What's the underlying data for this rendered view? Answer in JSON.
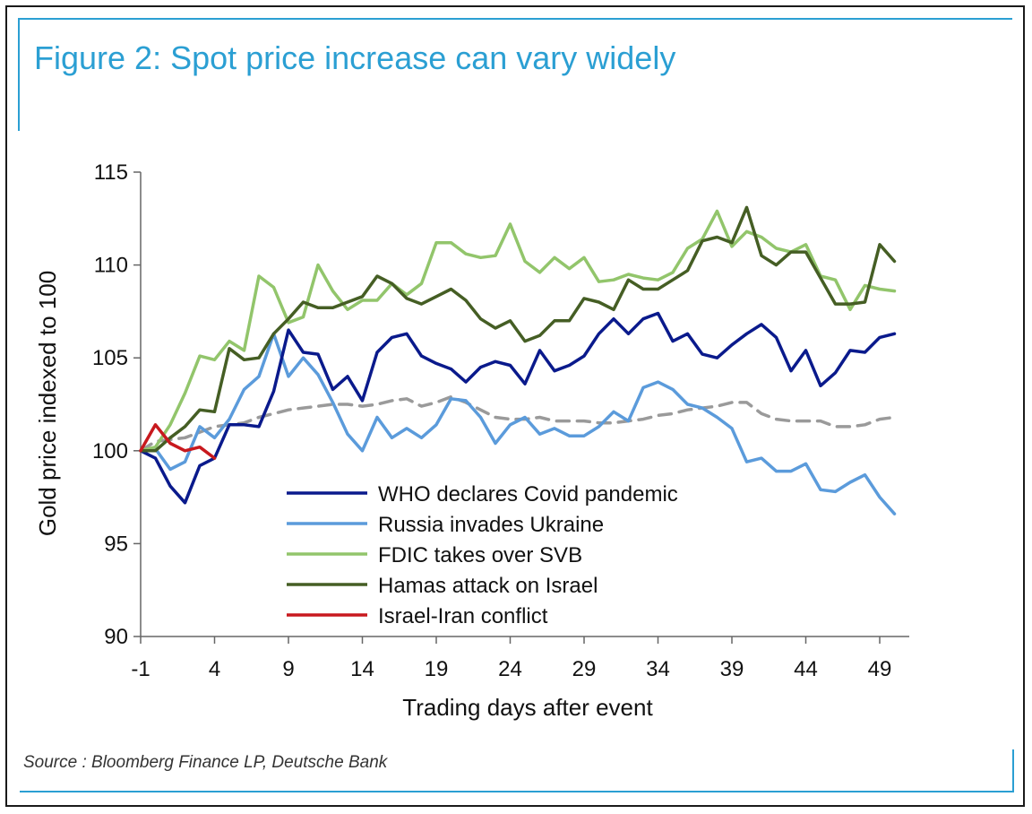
{
  "figure": {
    "title": "Figure 2: Spot price increase can vary widely",
    "source": "Source : Bloomberg Finance LP, Deutsche Bank"
  },
  "chart_data": {
    "type": "line",
    "xlabel": "Trading days after event",
    "ylabel": "Gold price indexed to 100",
    "xlim": [
      -1,
      51
    ],
    "ylim": [
      90,
      115
    ],
    "xticks": [
      -1,
      4,
      9,
      14,
      19,
      24,
      29,
      34,
      39,
      44,
      49
    ],
    "yticks": [
      90,
      95,
      100,
      105,
      110,
      115
    ],
    "legend_position": "inside-lower-middle",
    "grid": false,
    "series": [
      {
        "name": "WHO declares Covid pandemic",
        "color": "#0a1a8c",
        "dashed": false,
        "x0": -1,
        "values": [
          100,
          99.6,
          98.1,
          97.2,
          99.2,
          99.6,
          101.4,
          101.4,
          101.3,
          103.2,
          106.5,
          105.3,
          105.2,
          103.3,
          104.0,
          102.7,
          105.3,
          106.1,
          106.3,
          105.1,
          104.7,
          104.4,
          103.7,
          104.5,
          104.8,
          104.6,
          103.6,
          105.4,
          104.3,
          104.6,
          105.1,
          106.3,
          107.1,
          106.3,
          107.1,
          107.4,
          105.9,
          106.3,
          105.2,
          105.0,
          105.7,
          106.3,
          106.8,
          106.1,
          104.3,
          105.4,
          103.5,
          104.2,
          105.4,
          105.3,
          106.1,
          106.3
        ]
      },
      {
        "name": "Russia invades Ukraine",
        "color": "#5b9bdb",
        "dashed": false,
        "x0": -1,
        "values": [
          100,
          100.1,
          99.0,
          99.4,
          101.3,
          100.7,
          101.7,
          103.3,
          104.0,
          106.3,
          104.0,
          105.0,
          104.1,
          102.6,
          100.9,
          100.0,
          101.8,
          100.7,
          101.2,
          100.7,
          101.4,
          102.8,
          102.7,
          101.8,
          100.4,
          101.4,
          101.8,
          100.9,
          101.2,
          100.8,
          100.8,
          101.3,
          102.1,
          101.6,
          103.4,
          103.7,
          103.3,
          102.5,
          102.3,
          101.8,
          101.2,
          99.4,
          99.6,
          98.9,
          98.9,
          99.3,
          97.9,
          97.8,
          98.3,
          98.7,
          97.5,
          96.6
        ]
      },
      {
        "name": "FDIC takes over SVB",
        "color": "#92c56b",
        "dashed": false,
        "x0": -1,
        "values": [
          100,
          100.2,
          101.4,
          103.1,
          105.1,
          104.9,
          105.9,
          105.4,
          109.4,
          108.8,
          106.9,
          107.2,
          110.0,
          108.6,
          107.6,
          108.1,
          108.1,
          109.0,
          108.4,
          109.0,
          111.2,
          111.2,
          110.6,
          110.4,
          110.5,
          112.2,
          110.2,
          109.6,
          110.4,
          109.8,
          110.4,
          109.1,
          109.2,
          109.5,
          109.3,
          109.2,
          109.6,
          110.9,
          111.4,
          112.9,
          111.0,
          111.8,
          111.5,
          110.9,
          110.7,
          111.1,
          109.4,
          109.2,
          107.6,
          108.9,
          108.7,
          108.6
        ]
      },
      {
        "name": "Hamas attack on Israel",
        "color": "#455e24",
        "dashed": false,
        "x0": -1,
        "values": [
          100,
          100.0,
          100.7,
          101.3,
          102.2,
          102.1,
          105.5,
          104.9,
          105.0,
          106.3,
          107.1,
          108.0,
          107.7,
          107.7,
          108.0,
          108.3,
          109.4,
          109.0,
          108.2,
          107.9,
          108.3,
          108.7,
          108.1,
          107.1,
          106.6,
          107.0,
          105.9,
          106.2,
          107.0,
          107.0,
          108.2,
          108.0,
          107.6,
          109.2,
          108.7,
          108.7,
          109.2,
          109.7,
          111.3,
          111.5,
          111.2,
          113.1,
          110.5,
          110.0,
          110.7,
          110.7,
          109.3,
          107.9,
          107.9,
          108.0,
          111.1,
          110.2
        ]
      },
      {
        "name": "Israel-Iran conflict",
        "color": "#c8191e",
        "dashed": false,
        "x0": -1,
        "values": [
          100,
          101.4,
          100.4,
          100.0,
          100.2,
          99.6
        ]
      },
      {
        "name": "",
        "color": "#9a9a9a",
        "dashed": true,
        "x0": -1,
        "values": [
          100,
          100.5,
          100.6,
          100.7,
          101.0,
          101.3,
          101.4,
          101.5,
          101.8,
          102.0,
          102.2,
          102.3,
          102.4,
          102.5,
          102.5,
          102.4,
          102.5,
          102.7,
          102.8,
          102.4,
          102.6,
          102.9,
          102.6,
          102.2,
          101.8,
          101.7,
          101.7,
          101.8,
          101.6,
          101.6,
          101.6,
          101.5,
          101.5,
          101.6,
          101.7,
          101.9,
          102.0,
          102.2,
          102.3,
          102.4,
          102.6,
          102.6,
          102.0,
          101.7,
          101.6,
          101.6,
          101.6,
          101.3,
          101.3,
          101.4,
          101.7,
          101.8
        ]
      }
    ]
  }
}
